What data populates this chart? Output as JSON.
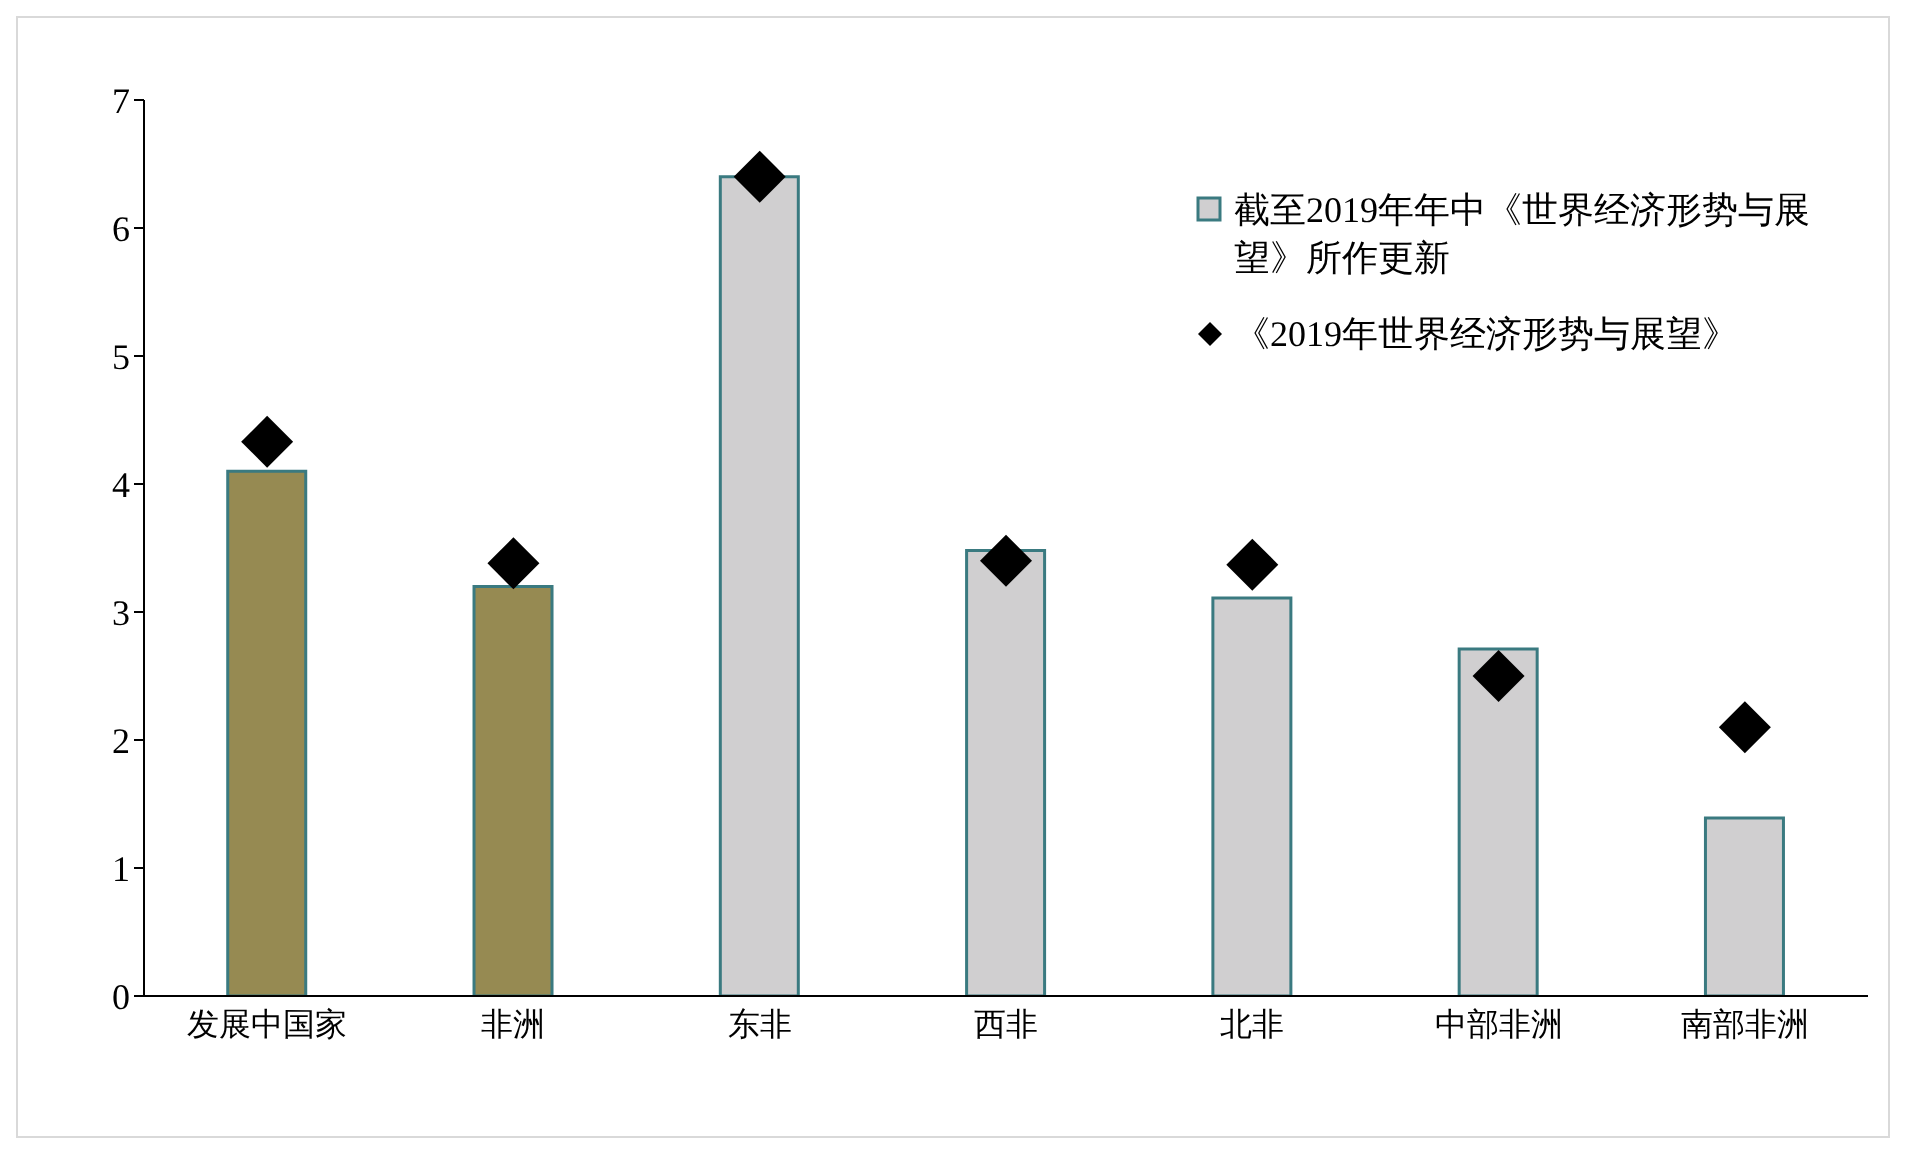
{
  "chart_data": {
    "type": "bar",
    "categories": [
      "发展中国家",
      "非洲",
      "东非",
      "西非",
      "北非",
      "中部非洲",
      "南部非洲"
    ],
    "series": [
      {
        "name": "截至2019年年中《世界经济形势与展望》所作更新",
        "color": "#d0cfd0",
        "colors": [
          "#968a52",
          "#968a52",
          "#d0cfd0",
          "#d0cfd0",
          "#d0cfd0",
          "#d0cfd0",
          "#d0cfd0"
        ],
        "values": [
          4.1,
          3.2,
          6.4,
          3.48,
          3.11,
          2.71,
          1.39
        ]
      },
      {
        "name": "《2019年世界经济形势与展望》",
        "type": "scatter",
        "color": "#000000",
        "marker": "diamond",
        "values": [
          4.33,
          3.38,
          6.4,
          3.4,
          3.37,
          2.5,
          2.1
        ]
      }
    ],
    "ylim": [
      0,
      7
    ],
    "yticks": [
      0,
      1,
      2,
      3,
      4,
      5,
      6,
      7
    ],
    "legend": "top right"
  }
}
